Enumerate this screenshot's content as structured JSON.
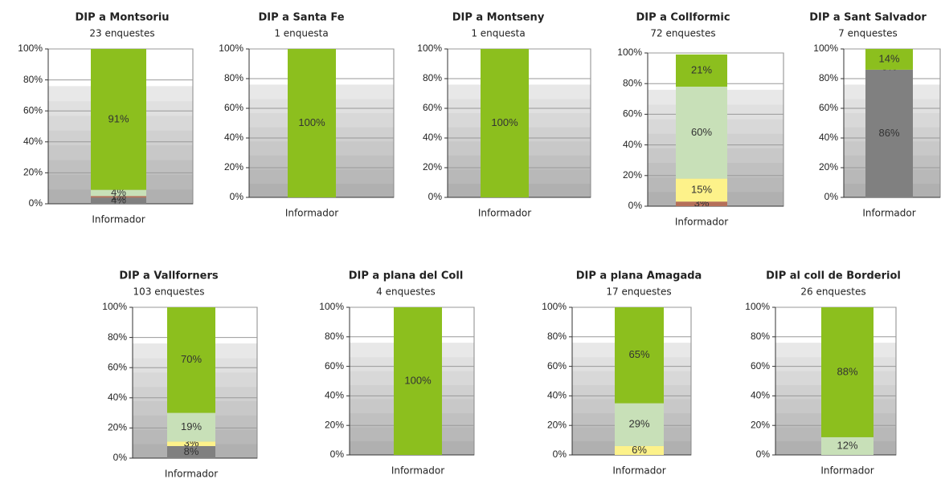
{
  "chart_data": [
    {
      "type": "stacked_bar",
      "title": "DIP a Montsoriu",
      "subtitle": "23 enquestes",
      "categories": [
        "Informador"
      ],
      "ylim": [
        0,
        100
      ],
      "yticks": [
        {
          "value": 0,
          "label": "0%"
        },
        {
          "value": 20,
          "label": "20%"
        },
        {
          "value": 40,
          "label": "40%"
        },
        {
          "value": 60,
          "label": "60%"
        },
        {
          "value": 80,
          "label": "80%"
        },
        {
          "value": 100,
          "label": "100%"
        }
      ],
      "series": [
        {
          "color": "#808080",
          "values": [
            4
          ],
          "value_labels": [
            "4%"
          ]
        },
        {
          "color": "#b5705a",
          "values": [
            1
          ],
          "value_labels": [
            "1%"
          ]
        },
        {
          "color": "#fdf28a",
          "values": [
            0
          ],
          "value_labels": [
            "0%"
          ]
        },
        {
          "color": "#c8e0b8",
          "values": [
            4
          ],
          "value_labels": [
            "4%"
          ]
        },
        {
          "color": "#8cbf1e",
          "values": [
            91
          ],
          "value_labels": [
            "91%"
          ]
        }
      ]
    },
    {
      "type": "stacked_bar",
      "title": "DIP a Santa Fe",
      "subtitle": "1 enquesta",
      "categories": [
        "Informador"
      ],
      "ylim": [
        0,
        100
      ],
      "yticks": [
        {
          "value": 0,
          "label": "0%"
        },
        {
          "value": 20,
          "label": "20%"
        },
        {
          "value": 40,
          "label": "40%"
        },
        {
          "value": 60,
          "label": "60%"
        },
        {
          "value": 80,
          "label": "80%"
        },
        {
          "value": 100,
          "label": "100%"
        }
      ],
      "series": [
        {
          "color": "#808080",
          "values": [
            0
          ],
          "value_labels": [
            "0%"
          ]
        },
        {
          "color": "#8cbf1e",
          "values": [
            100
          ],
          "value_labels": [
            "100%"
          ]
        }
      ]
    },
    {
      "type": "stacked_bar",
      "title": "DIP a Montseny",
      "subtitle": "1 enquesta",
      "categories": [
        "Informador"
      ],
      "ylim": [
        0,
        100
      ],
      "yticks": [
        {
          "value": 0,
          "label": "0%"
        },
        {
          "value": 20,
          "label": "20%"
        },
        {
          "value": 40,
          "label": "40%"
        },
        {
          "value": 60,
          "label": "60%"
        },
        {
          "value": 80,
          "label": "80%"
        },
        {
          "value": 100,
          "label": "100%"
        }
      ],
      "series": [
        {
          "color": "#808080",
          "values": [
            0
          ],
          "value_labels": [
            "0%"
          ]
        },
        {
          "color": "#8cbf1e",
          "values": [
            100
          ],
          "value_labels": [
            "100%"
          ]
        }
      ]
    },
    {
      "type": "stacked_bar",
      "title": "DIP a Collformic",
      "subtitle": "72 enquestes",
      "categories": [
        "Informador"
      ],
      "ylim": [
        0,
        100
      ],
      "yticks": [
        {
          "value": 0,
          "label": "0%"
        },
        {
          "value": 20,
          "label": "20%"
        },
        {
          "value": 40,
          "label": "40%"
        },
        {
          "value": 60,
          "label": "60%"
        },
        {
          "value": 80,
          "label": "80%"
        },
        {
          "value": 100,
          "label": "100%"
        }
      ],
      "series": [
        {
          "color": "#b5705a",
          "values": [
            3
          ],
          "value_labels": [
            "3%"
          ]
        },
        {
          "color": "#fdf28a",
          "values": [
            15
          ],
          "value_labels": [
            "15%"
          ]
        },
        {
          "color": "#c8e0b8",
          "values": [
            60
          ],
          "value_labels": [
            "60%"
          ]
        },
        {
          "color": "#8cbf1e",
          "values": [
            21
          ],
          "value_labels": [
            "21%"
          ]
        }
      ]
    },
    {
      "type": "stacked_bar",
      "title": "DIP a Sant Salvador",
      "subtitle": "7 enquestes",
      "categories": [
        "Informador"
      ],
      "ylim": [
        0,
        100
      ],
      "yticks": [
        {
          "value": 0,
          "label": "0%"
        },
        {
          "value": 20,
          "label": "20%"
        },
        {
          "value": 40,
          "label": "40%"
        },
        {
          "value": 60,
          "label": "60%"
        },
        {
          "value": 80,
          "label": "80%"
        },
        {
          "value": 100,
          "label": "100%"
        }
      ],
      "series": [
        {
          "color": "#808080",
          "values": [
            86
          ],
          "value_labels": [
            "86%"
          ]
        },
        {
          "color": "#b5705a",
          "values": [
            0
          ],
          "value_labels": [
            "0%"
          ]
        },
        {
          "color": "#8cbf1e",
          "values": [
            14
          ],
          "value_labels": [
            "14%"
          ]
        }
      ]
    },
    {
      "type": "stacked_bar",
      "title": "DIP a Vallforners",
      "subtitle": "103 enquestes",
      "categories": [
        "Informador"
      ],
      "ylim": [
        0,
        100
      ],
      "yticks": [
        {
          "value": 0,
          "label": "0%"
        },
        {
          "value": 20,
          "label": "20%"
        },
        {
          "value": 40,
          "label": "40%"
        },
        {
          "value": 60,
          "label": "60%"
        },
        {
          "value": 80,
          "label": "80%"
        },
        {
          "value": 100,
          "label": "100%"
        }
      ],
      "series": [
        {
          "color": "#808080",
          "values": [
            8
          ],
          "value_labels": [
            "8%"
          ]
        },
        {
          "color": "#fdf28a",
          "values": [
            3
          ],
          "value_labels": [
            "3%"
          ]
        },
        {
          "color": "#c8e0b8",
          "values": [
            19
          ],
          "value_labels": [
            "19%"
          ]
        },
        {
          "color": "#8cbf1e",
          "values": [
            70
          ],
          "value_labels": [
            "70%"
          ]
        }
      ]
    },
    {
      "type": "stacked_bar",
      "title": "DIP a plana del Coll",
      "subtitle": "4 enquestes",
      "categories": [
        "Informador"
      ],
      "ylim": [
        0,
        100
      ],
      "yticks": [
        {
          "value": 0,
          "label": "0%"
        },
        {
          "value": 20,
          "label": "20%"
        },
        {
          "value": 40,
          "label": "40%"
        },
        {
          "value": 60,
          "label": "60%"
        },
        {
          "value": 80,
          "label": "80%"
        },
        {
          "value": 100,
          "label": "100%"
        }
      ],
      "series": [
        {
          "color": "#808080",
          "values": [
            0
          ],
          "value_labels": [
            "0%"
          ]
        },
        {
          "color": "#8cbf1e",
          "values": [
            100
          ],
          "value_labels": [
            "100%"
          ]
        }
      ]
    },
    {
      "type": "stacked_bar",
      "title": "DIP a plana Amagada",
      "subtitle": "17 enquestes",
      "categories": [
        "Informador"
      ],
      "ylim": [
        0,
        100
      ],
      "yticks": [
        {
          "value": 0,
          "label": "0%"
        },
        {
          "value": 20,
          "label": "20%"
        },
        {
          "value": 40,
          "label": "40%"
        },
        {
          "value": 60,
          "label": "60%"
        },
        {
          "value": 80,
          "label": "80%"
        },
        {
          "value": 100,
          "label": "100%"
        }
      ],
      "series": [
        {
          "color": "#808080",
          "values": [
            0
          ],
          "value_labels": [
            "0%"
          ]
        },
        {
          "color": "#fdf28a",
          "values": [
            6
          ],
          "value_labels": [
            "6%"
          ]
        },
        {
          "color": "#c8e0b8",
          "values": [
            29
          ],
          "value_labels": [
            "29%"
          ]
        },
        {
          "color": "#8cbf1e",
          "values": [
            65
          ],
          "value_labels": [
            "65%"
          ]
        }
      ]
    },
    {
      "type": "stacked_bar",
      "title": "DIP al coll de Borderiol",
      "subtitle": "26 enquestes",
      "categories": [
        "Informador"
      ],
      "ylim": [
        0,
        100
      ],
      "yticks": [
        {
          "value": 0,
          "label": "0%"
        },
        {
          "value": 20,
          "label": "20%"
        },
        {
          "value": 40,
          "label": "40%"
        },
        {
          "value": 60,
          "label": "60%"
        },
        {
          "value": 80,
          "label": "80%"
        },
        {
          "value": 100,
          "label": "100%"
        }
      ],
      "series": [
        {
          "color": "#808080",
          "values": [
            0
          ],
          "value_labels": [
            "0%"
          ]
        },
        {
          "color": "#c8e0b8",
          "values": [
            12
          ],
          "value_labels": [
            "12%"
          ]
        },
        {
          "color": "#8cbf1e",
          "values": [
            88
          ],
          "value_labels": [
            "88%"
          ]
        }
      ]
    }
  ]
}
